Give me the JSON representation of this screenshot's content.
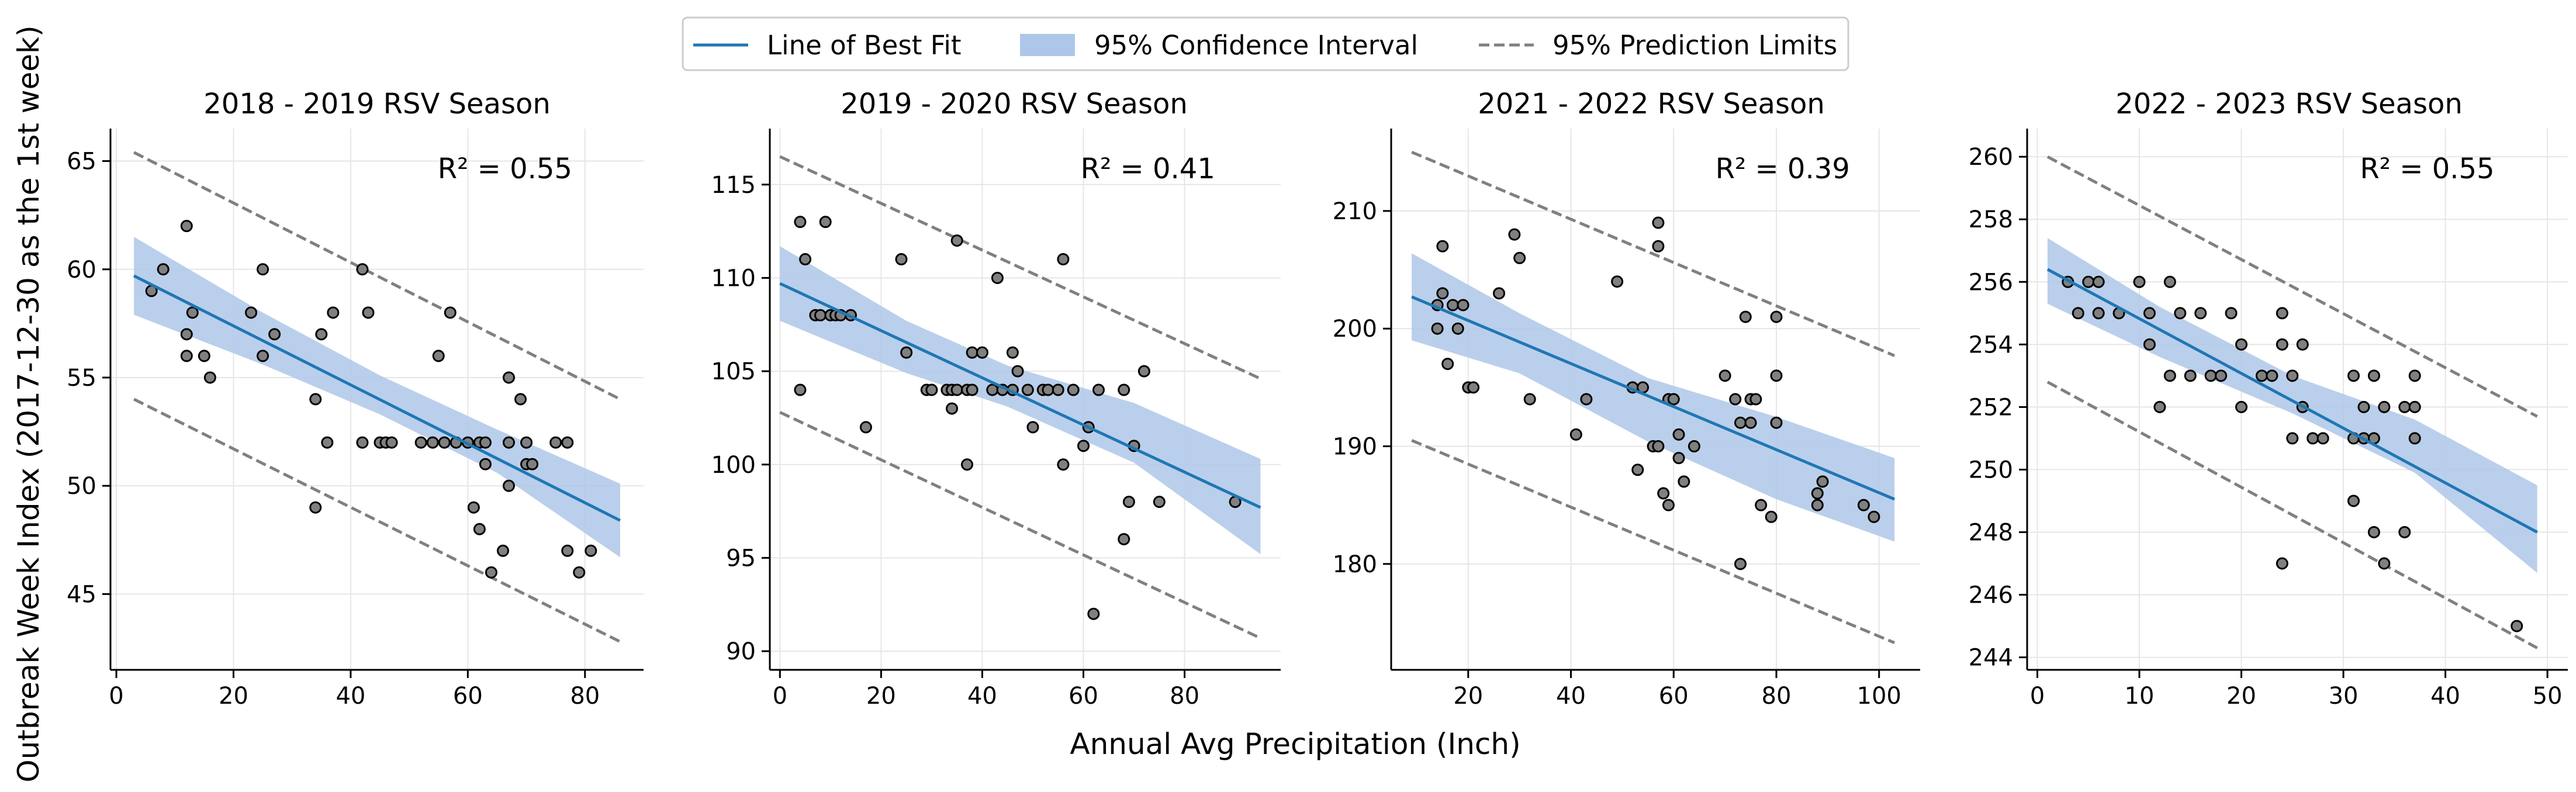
{
  "figure": {
    "xlabel": "Annual Avg Precipitation (Inch)",
    "ylabel": "Outbreak Week Index (2017-12-30 as the 1st week)"
  },
  "legend": {
    "placement": "top-center",
    "items": [
      {
        "label": "Line of Best Fit",
        "style": "line",
        "color": "#1f77b4"
      },
      {
        "label": "95% Confidence Interval",
        "style": "patch",
        "color": "#aec7e8"
      },
      {
        "label": "95% Prediction Limits",
        "style": "dashed",
        "color": "#808080"
      }
    ]
  },
  "colors": {
    "fit_line": "#1f77b4",
    "ci_band": "#aec7e8",
    "prediction_limits": "#808080",
    "points_fill": "#808080",
    "points_edge": "#000000",
    "grid": "#e6e6e6"
  },
  "chart_data": [
    {
      "type": "scatter",
      "title": "2018 - 2019 RSV Season",
      "annotation": "R² = 0.55",
      "xlim": [
        -1,
        90
      ],
      "ylim": [
        41.5,
        66.5
      ],
      "xticks": [
        0,
        20,
        40,
        60,
        80
      ],
      "yticks": [
        45,
        50,
        55,
        60,
        65
      ],
      "grid": true,
      "points": [
        [
          6,
          59
        ],
        [
          8,
          60
        ],
        [
          12,
          62
        ],
        [
          12,
          57
        ],
        [
          12,
          56
        ],
        [
          13,
          58
        ],
        [
          15,
          56
        ],
        [
          16,
          55
        ],
        [
          23,
          58
        ],
        [
          25,
          56
        ],
        [
          25,
          60
        ],
        [
          27,
          57
        ],
        [
          34,
          54
        ],
        [
          34,
          49
        ],
        [
          35,
          57
        ],
        [
          36,
          52
        ],
        [
          37,
          58
        ],
        [
          42,
          52
        ],
        [
          42,
          60
        ],
        [
          43,
          58
        ],
        [
          45,
          52
        ],
        [
          46,
          52
        ],
        [
          47,
          52
        ],
        [
          52,
          52
        ],
        [
          54,
          52
        ],
        [
          55,
          56
        ],
        [
          56,
          52
        ],
        [
          57,
          58
        ],
        [
          58,
          52
        ],
        [
          60,
          52
        ],
        [
          61,
          49
        ],
        [
          62,
          52
        ],
        [
          62,
          48
        ],
        [
          63,
          51
        ],
        [
          63,
          52
        ],
        [
          64,
          46
        ],
        [
          66,
          47
        ],
        [
          67,
          55
        ],
        [
          67,
          52
        ],
        [
          67,
          50
        ],
        [
          69,
          54
        ],
        [
          70,
          52
        ],
        [
          70,
          51
        ],
        [
          71,
          51
        ],
        [
          75,
          52
        ],
        [
          77,
          52
        ],
        [
          77,
          47
        ],
        [
          79,
          46
        ],
        [
          81,
          47
        ]
      ],
      "fit": {
        "x": [
          3,
          86
        ],
        "y": [
          59.7,
          48.4
        ]
      },
      "ci": {
        "x": [
          3,
          25,
          45,
          65,
          86
        ],
        "upper": [
          61.5,
          58.0,
          55.1,
          52.6,
          50.1
        ],
        "lower": [
          57.9,
          55.6,
          53.3,
          50.6,
          46.7
        ]
      },
      "pred_upper": {
        "x": [
          3,
          86
        ],
        "y": [
          65.4,
          54.0
        ]
      },
      "pred_lower": {
        "x": [
          3,
          86
        ],
        "y": [
          54.0,
          42.8
        ]
      }
    },
    {
      "type": "scatter",
      "title": "2019 - 2020 RSV Season",
      "annotation": "R² = 0.41",
      "xlim": [
        -2,
        99
      ],
      "ylim": [
        89,
        118
      ],
      "xticks": [
        0,
        20,
        40,
        60,
        80
      ],
      "yticks": [
        90,
        95,
        100,
        105,
        110,
        115
      ],
      "grid": true,
      "points": [
        [
          4,
          113
        ],
        [
          4,
          104
        ],
        [
          5,
          111
        ],
        [
          7,
          108
        ],
        [
          8,
          108
        ],
        [
          9,
          113
        ],
        [
          10,
          108
        ],
        [
          11,
          108
        ],
        [
          12,
          108
        ],
        [
          14,
          108
        ],
        [
          17,
          102
        ],
        [
          24,
          111
        ],
        [
          25,
          106
        ],
        [
          29,
          104
        ],
        [
          30,
          104
        ],
        [
          33,
          104
        ],
        [
          34,
          104
        ],
        [
          34,
          103
        ],
        [
          35,
          112
        ],
        [
          35,
          104
        ],
        [
          37,
          104
        ],
        [
          37,
          100
        ],
        [
          38,
          104
        ],
        [
          38,
          106
        ],
        [
          40,
          106
        ],
        [
          42,
          104
        ],
        [
          43,
          110
        ],
        [
          44,
          104
        ],
        [
          46,
          106
        ],
        [
          46,
          104
        ],
        [
          47,
          105
        ],
        [
          49,
          104
        ],
        [
          50,
          102
        ],
        [
          52,
          104
        ],
        [
          53,
          104
        ],
        [
          55,
          104
        ],
        [
          56,
          100
        ],
        [
          56,
          111
        ],
        [
          58,
          104
        ],
        [
          60,
          101
        ],
        [
          61,
          102
        ],
        [
          62,
          92
        ],
        [
          63,
          104
        ],
        [
          68,
          104
        ],
        [
          68,
          96
        ],
        [
          69,
          98
        ],
        [
          70,
          101
        ],
        [
          72,
          105
        ],
        [
          75,
          98
        ],
        [
          90,
          98
        ]
      ],
      "fit": {
        "x": [
          0,
          95
        ],
        "y": [
          109.7,
          97.7
        ]
      },
      "ci": {
        "x": [
          0,
          25,
          45,
          70,
          95
        ],
        "upper": [
          111.7,
          107.7,
          105.3,
          103.3,
          100.3
        ],
        "lower": [
          107.7,
          104.9,
          103.1,
          100.1,
          95.2
        ]
      },
      "pred_upper": {
        "x": [
          0,
          95
        ],
        "y": [
          116.5,
          104.6
        ]
      },
      "pred_lower": {
        "x": [
          0,
          95
        ],
        "y": [
          102.8,
          90.7
        ]
      }
    },
    {
      "type": "scatter",
      "title": "2021 - 2022 RSV Season",
      "annotation": "R² = 0.39",
      "xlim": [
        5,
        108
      ],
      "ylim": [
        171,
        217
      ],
      "xticks": [
        20,
        40,
        60,
        80,
        100
      ],
      "yticks": [
        180,
        190,
        200,
        210
      ],
      "grid": true,
      "points": [
        [
          14,
          202
        ],
        [
          14,
          200
        ],
        [
          15,
          207
        ],
        [
          15,
          203
        ],
        [
          16,
          197
        ],
        [
          17,
          202
        ],
        [
          18,
          200
        ],
        [
          19,
          202
        ],
        [
          20,
          195
        ],
        [
          21,
          195
        ],
        [
          26,
          203
        ],
        [
          29,
          208
        ],
        [
          30,
          206
        ],
        [
          32,
          194
        ],
        [
          41,
          191
        ],
        [
          43,
          194
        ],
        [
          49,
          204
        ],
        [
          52,
          195
        ],
        [
          53,
          188
        ],
        [
          54,
          195
        ],
        [
          56,
          190
        ],
        [
          57,
          209
        ],
        [
          57,
          207
        ],
        [
          57,
          190
        ],
        [
          58,
          186
        ],
        [
          59,
          194
        ],
        [
          59,
          185
        ],
        [
          60,
          194
        ],
        [
          61,
          191
        ],
        [
          61,
          189
        ],
        [
          62,
          187
        ],
        [
          64,
          190
        ],
        [
          70,
          196
        ],
        [
          72,
          194
        ],
        [
          73,
          192
        ],
        [
          74,
          201
        ],
        [
          73,
          180
        ],
        [
          75,
          194
        ],
        [
          75,
          192
        ],
        [
          76,
          194
        ],
        [
          77,
          185
        ],
        [
          79,
          184
        ],
        [
          80,
          196
        ],
        [
          80,
          192
        ],
        [
          80,
          201
        ],
        [
          88,
          186
        ],
        [
          88,
          185
        ],
        [
          89,
          187
        ],
        [
          97,
          185
        ],
        [
          99,
          184
        ]
      ],
      "fit": {
        "x": [
          9,
          103
        ],
        "y": [
          202.7,
          185.5
        ]
      },
      "ci": {
        "x": [
          9,
          30,
          55,
          80,
          103
        ],
        "upper": [
          206.4,
          201.3,
          195.8,
          192.5,
          189.0
        ],
        "lower": [
          199.0,
          196.2,
          190.4,
          185.5,
          181.9
        ]
      },
      "pred_upper": {
        "x": [
          9,
          103
        ],
        "y": [
          215.0,
          197.7
        ]
      },
      "pred_lower": {
        "x": [
          9,
          103
        ],
        "y": [
          190.5,
          173.3
        ]
      }
    },
    {
      "type": "scatter",
      "title": "2022 - 2023 RSV Season",
      "annotation": "R² = 0.55",
      "xlim": [
        -1,
        52
      ],
      "ylim": [
        243.6,
        260.9
      ],
      "xticks": [
        0,
        10,
        20,
        30,
        40,
        50
      ],
      "yticks": [
        244,
        246,
        248,
        250,
        252,
        254,
        256,
        258,
        260
      ],
      "grid": true,
      "points": [
        [
          3,
          256
        ],
        [
          4,
          255
        ],
        [
          5,
          256
        ],
        [
          6,
          256
        ],
        [
          6,
          255
        ],
        [
          8,
          255
        ],
        [
          10,
          256
        ],
        [
          11,
          255
        ],
        [
          11,
          254
        ],
        [
          12,
          252
        ],
        [
          13,
          256
        ],
        [
          13,
          253
        ],
        [
          14,
          255
        ],
        [
          15,
          253
        ],
        [
          16,
          255
        ],
        [
          17,
          253
        ],
        [
          18,
          253
        ],
        [
          19,
          255
        ],
        [
          20,
          254
        ],
        [
          20,
          252
        ],
        [
          22,
          253
        ],
        [
          23,
          253
        ],
        [
          24,
          247
        ],
        [
          24,
          255
        ],
        [
          24,
          254
        ],
        [
          25,
          253
        ],
        [
          25,
          251
        ],
        [
          26,
          254
        ],
        [
          26,
          252
        ],
        [
          27,
          251
        ],
        [
          28,
          251
        ],
        [
          31,
          253
        ],
        [
          31,
          251
        ],
        [
          31,
          249
        ],
        [
          32,
          252
        ],
        [
          32,
          251
        ],
        [
          33,
          253
        ],
        [
          33,
          251
        ],
        [
          33,
          248
        ],
        [
          34,
          252
        ],
        [
          34,
          247
        ],
        [
          36,
          252
        ],
        [
          36,
          248
        ],
        [
          37,
          253
        ],
        [
          37,
          251
        ],
        [
          37,
          252
        ],
        [
          47,
          245
        ]
      ],
      "fit": {
        "x": [
          1,
          49
        ],
        "y": [
          256.4,
          248.0
        ]
      },
      "ci": {
        "x": [
          1,
          12,
          25,
          37,
          49
        ],
        "upper": [
          257.4,
          255.2,
          253.0,
          251.6,
          249.5
        ],
        "lower": [
          255.3,
          253.6,
          251.8,
          249.9,
          246.7
        ]
      },
      "pred_upper": {
        "x": [
          1,
          49
        ],
        "y": [
          260.0,
          251.7
        ]
      },
      "pred_lower": {
        "x": [
          1,
          49
        ],
        "y": [
          252.8,
          244.3
        ]
      }
    }
  ]
}
